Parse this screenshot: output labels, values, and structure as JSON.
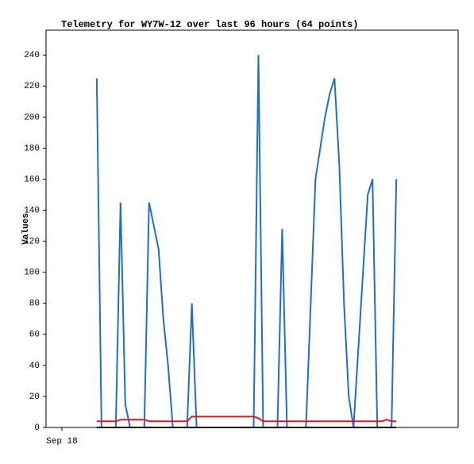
{
  "chart_data": {
    "type": "line",
    "title": "Telemetry for WY7W-12 over last 96 hours (64 points)",
    "y_label": "Values",
    "x": [
      11,
      12.5,
      14,
      15.5,
      17,
      18.5,
      20,
      21.5,
      23,
      24.5,
      26,
      27.5,
      29,
      30.5,
      32,
      33.5,
      35,
      36.5,
      38,
      39.5,
      41,
      42.5,
      44,
      45.5,
      47,
      48.5,
      50,
      51.5,
      53,
      54.5,
      56,
      57.5,
      59,
      60.5,
      62,
      63.5,
      65,
      66.5,
      68,
      69.5,
      71,
      72.5,
      74,
      75.5,
      77,
      78.5,
      80,
      81.5,
      83,
      84.5,
      86,
      87.5,
      89,
      90.5,
      92,
      93.5,
      95,
      96.5,
      98,
      99.5,
      101,
      102.5,
      104,
      105.5
    ],
    "series": [
      {
        "color": "#1f6fc6",
        "values": [
          225,
          0,
          0,
          0,
          0,
          145,
          15,
          0,
          0,
          0,
          0,
          145,
          130,
          115,
          70,
          40,
          0,
          0,
          0,
          0,
          80,
          0,
          0,
          0,
          0,
          0,
          0,
          0,
          0,
          0,
          0,
          0,
          0,
          0,
          240,
          0,
          0,
          0,
          0,
          128,
          0,
          0,
          0,
          0,
          0,
          80,
          160,
          180,
          200,
          215,
          225,
          170,
          80,
          20,
          0,
          50,
          100,
          150,
          160,
          0,
          0,
          0,
          0,
          160
        ]
      },
      {
        "color": "#e8161b",
        "values": [
          4,
          4,
          4,
          4,
          4,
          5,
          5,
          5,
          5,
          5,
          5,
          4,
          4,
          4,
          4,
          4,
          4,
          4,
          4,
          4,
          7,
          7,
          7,
          7,
          7,
          7,
          7,
          7,
          7,
          7,
          7,
          7,
          7,
          7,
          6,
          4,
          4,
          4,
          4,
          4,
          4,
          4,
          4,
          4,
          4,
          4,
          4,
          4,
          4,
          4,
          4,
          4,
          4,
          4,
          4,
          4,
          4,
          4,
          4,
          4,
          4,
          5,
          4,
          4
        ]
      },
      {
        "color": "#000000",
        "values": [
          0,
          0,
          0,
          0,
          0,
          0,
          0,
          0,
          0,
          0,
          0,
          0,
          0,
          0,
          0,
          0,
          0,
          0,
          0,
          0,
          0,
          0,
          0,
          0,
          0,
          0,
          0,
          0,
          0,
          0,
          0,
          0,
          0,
          0,
          0,
          0,
          0,
          0,
          0,
          0,
          0,
          0,
          0,
          0,
          0,
          0,
          0,
          0,
          0,
          0,
          0,
          0,
          0,
          0,
          0,
          0,
          0,
          0,
          0,
          0,
          0,
          0,
          0,
          0
        ]
      }
    ],
    "xlim": [
      -5,
      125
    ],
    "xticks": [
      {
        "value": 0,
        "label": "Sep 18"
      }
    ],
    "ylim": [
      0,
      256
    ],
    "yticks": [
      0,
      20,
      40,
      60,
      80,
      100,
      120,
      140,
      160,
      180,
      200,
      220,
      240
    ],
    "grid": false
  }
}
